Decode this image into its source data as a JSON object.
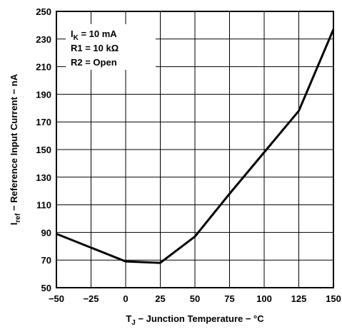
{
  "chart_data": {
    "type": "line",
    "title": "",
    "xlabel": {
      "main": "T",
      "sub": "J",
      "rest": " − Junction Temperature − °C"
    },
    "ylabel": {
      "main": "I",
      "sub": "ref",
      "rest": " − Reference Input Current − nA"
    },
    "xlim": [
      -50,
      150
    ],
    "ylim": [
      50,
      250
    ],
    "xticks": [
      -50,
      -25,
      0,
      25,
      50,
      75,
      100,
      125,
      150
    ],
    "xtick_labels": [
      "−50",
      "−25",
      "0",
      "25",
      "50",
      "75",
      "100",
      "125",
      "150"
    ],
    "yticks": [
      50,
      70,
      90,
      110,
      130,
      150,
      170,
      190,
      210,
      230,
      250
    ],
    "grid": true,
    "series": [
      {
        "x": [
          -50,
          0,
          25,
          50,
          75,
          100,
          125,
          150
        ],
        "y": [
          89,
          69,
          68,
          87,
          118,
          148,
          178,
          237
        ]
      }
    ],
    "conditions": [
      {
        "main": "I",
        "sub": "K",
        "rest": " = 10 mA"
      },
      {
        "main": "R1 = 10 kΩ",
        "sub": "",
        "rest": ""
      },
      {
        "main": "R2 = Open",
        "sub": "",
        "rest": ""
      }
    ],
    "colors": {
      "line": "#000000",
      "grid": "#000000",
      "background": "#ffffff"
    }
  }
}
